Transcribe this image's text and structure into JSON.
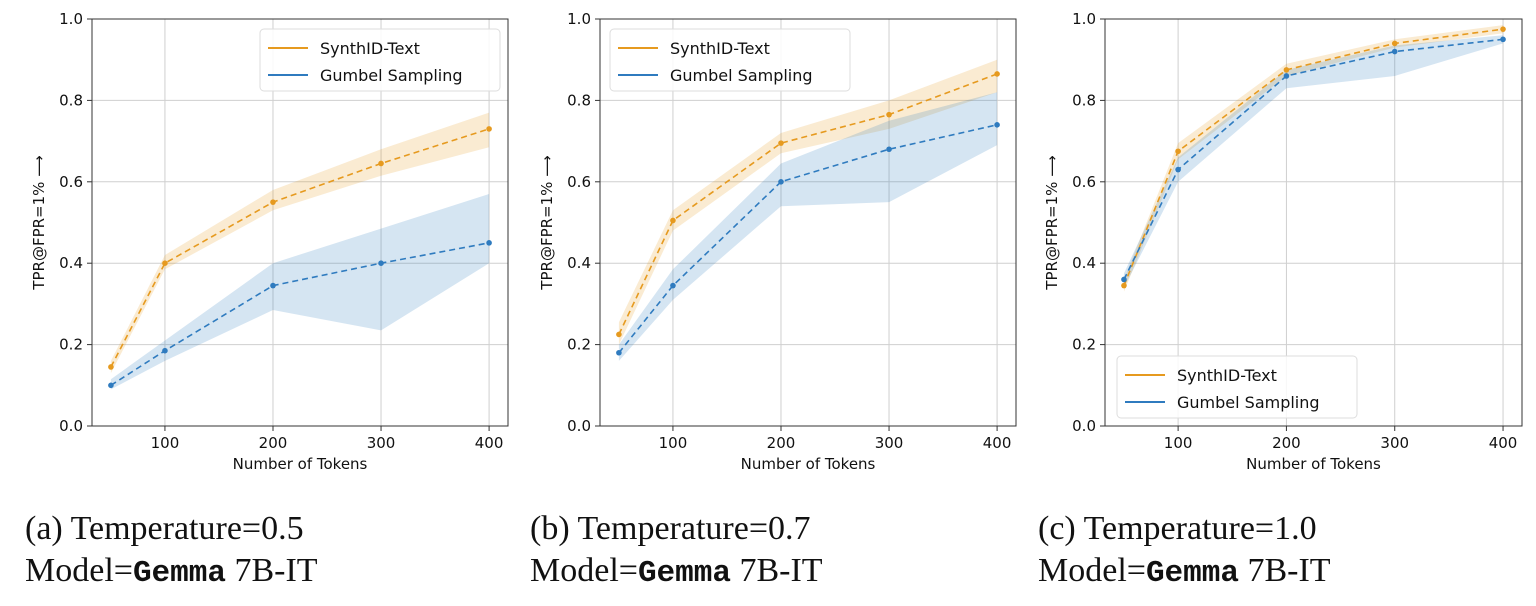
{
  "chart_data": [
    {
      "type": "line",
      "panel_label": "(a)",
      "caption_line1": "(a) Temperature=0.5",
      "caption_model_prefix": "Model=",
      "caption_model_mono": "Gemma",
      "caption_model_suffix": " 7B-IT",
      "xlabel": "Number of Tokens",
      "ylabel": "TPR@FPR=1% ⟶",
      "xlim": [
        32.5,
        417.5
      ],
      "ylim": [
        0,
        1
      ],
      "xticks": [
        100,
        200,
        300,
        400
      ],
      "yticks": [
        "0.0",
        "0.2",
        "0.4",
        "0.6",
        "0.8",
        "1.0"
      ],
      "grid": true,
      "legend_position": "upper-right",
      "x": [
        50,
        100,
        200,
        300,
        400
      ],
      "series": [
        {
          "name": "SynthID-Text",
          "color": "#e69a1f",
          "values": [
            0.145,
            0.4,
            0.55,
            0.645,
            0.73
          ],
          "lower": [
            0.13,
            0.385,
            0.53,
            0.615,
            0.685
          ],
          "upper": [
            0.16,
            0.42,
            0.58,
            0.68,
            0.77
          ]
        },
        {
          "name": "Gumbel Sampling",
          "color": "#2f7bbf",
          "values": [
            0.1,
            0.185,
            0.345,
            0.4,
            0.45
          ],
          "lower": [
            0.09,
            0.16,
            0.285,
            0.235,
            0.4
          ],
          "upper": [
            0.115,
            0.21,
            0.4,
            0.485,
            0.57
          ]
        }
      ]
    },
    {
      "type": "line",
      "panel_label": "(b)",
      "caption_line1": "(b) Temperature=0.7",
      "caption_model_prefix": "Model=",
      "caption_model_mono": "Gemma",
      "caption_model_suffix": " 7B-IT",
      "xlabel": "Number of Tokens",
      "ylabel": "TPR@FPR=1% ⟶",
      "xlim": [
        32.5,
        417.5
      ],
      "ylim": [
        0,
        1
      ],
      "xticks": [
        100,
        200,
        300,
        400
      ],
      "yticks": [
        "0.0",
        "0.2",
        "0.4",
        "0.6",
        "0.8",
        "1.0"
      ],
      "grid": true,
      "legend_position": "upper-left",
      "x": [
        50,
        100,
        200,
        300,
        400
      ],
      "series": [
        {
          "name": "SynthID-Text",
          "color": "#e69a1f",
          "values": [
            0.225,
            0.505,
            0.695,
            0.765,
            0.865
          ],
          "lower": [
            0.2,
            0.48,
            0.67,
            0.73,
            0.82
          ],
          "upper": [
            0.255,
            0.53,
            0.72,
            0.8,
            0.9
          ]
        },
        {
          "name": "Gumbel Sampling",
          "color": "#2f7bbf",
          "values": [
            0.18,
            0.345,
            0.6,
            0.68,
            0.74
          ],
          "lower": [
            0.16,
            0.31,
            0.54,
            0.55,
            0.69
          ],
          "upper": [
            0.2,
            0.385,
            0.645,
            0.75,
            0.82
          ]
        }
      ]
    },
    {
      "type": "line",
      "panel_label": "(c)",
      "caption_line1": "(c) Temperature=1.0",
      "caption_model_prefix": "Model=",
      "caption_model_mono": "Gemma",
      "caption_model_suffix": " 7B-IT",
      "xlabel": "Number of Tokens",
      "ylabel": "TPR@FPR=1% ⟶",
      "xlim": [
        32.5,
        417.5
      ],
      "ylim": [
        0,
        1
      ],
      "xticks": [
        100,
        200,
        300,
        400
      ],
      "yticks": [
        "0.0",
        "0.2",
        "0.4",
        "0.6",
        "0.8",
        "1.0"
      ],
      "grid": true,
      "legend_position": "lower-left",
      "x": [
        50,
        100,
        200,
        300,
        400
      ],
      "series": [
        {
          "name": "SynthID-Text",
          "color": "#e69a1f",
          "values": [
            0.345,
            0.675,
            0.875,
            0.94,
            0.975
          ],
          "lower": [
            0.33,
            0.655,
            0.86,
            0.93,
            0.965
          ],
          "upper": [
            0.36,
            0.695,
            0.89,
            0.95,
            0.985
          ]
        },
        {
          "name": "Gumbel Sampling",
          "color": "#2f7bbf",
          "values": [
            0.36,
            0.63,
            0.86,
            0.92,
            0.95
          ],
          "lower": [
            0.34,
            0.6,
            0.83,
            0.86,
            0.94
          ],
          "upper": [
            0.375,
            0.66,
            0.875,
            0.935,
            0.96
          ]
        }
      ]
    }
  ]
}
